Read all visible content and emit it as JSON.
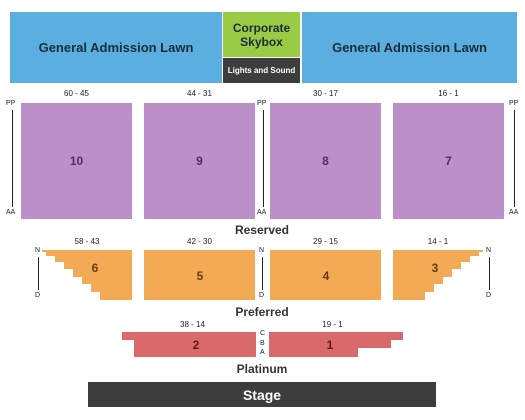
{
  "colors": {
    "lawn": "#5aafe0",
    "skybox": "#99cc44",
    "lights_sound": "#3d3d3d",
    "reserved": "#bb90c8",
    "preferred": "#f2aa55",
    "platinum": "#d9696a",
    "stage": "#3d3d3d"
  },
  "top": {
    "lawn_left": "General Admission Lawn",
    "skybox_line1": "Corporate",
    "skybox_line2": "Skybox",
    "lights_sound": "Lights and Sound",
    "lawn_right": "General Admission Lawn"
  },
  "reserved": {
    "zone_label": "Reserved",
    "row_top": "PP",
    "row_bottom": "AA",
    "sections": [
      {
        "name": "10",
        "range": "60 - 45"
      },
      {
        "name": "9",
        "range": "44 - 31"
      },
      {
        "name": "8",
        "range": "30 - 17"
      },
      {
        "name": "7",
        "range": "16 - 1"
      }
    ]
  },
  "preferred": {
    "zone_label": "Preferred",
    "row_top": "N",
    "row_bottom": "D",
    "sections": [
      {
        "name": "6",
        "range": "58 - 43"
      },
      {
        "name": "5",
        "range": "42 - 30"
      },
      {
        "name": "4",
        "range": "29 - 15"
      },
      {
        "name": "3",
        "range": "14 - 1"
      }
    ]
  },
  "platinum": {
    "zone_label": "Platinum",
    "rows": [
      "C",
      "B",
      "A"
    ],
    "sections": [
      {
        "name": "2",
        "range": "38 - 14"
      },
      {
        "name": "1",
        "range": "19 - 1"
      }
    ]
  },
  "stage": "Stage"
}
